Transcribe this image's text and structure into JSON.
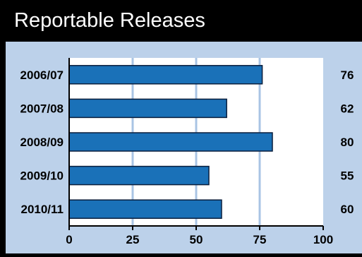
{
  "title": "Reportable Releases",
  "colors": {
    "bar": "#1a71b8",
    "bar_border": "#0a1e3c",
    "background": "#bcd1ea",
    "plot_background": "#ffffff",
    "gridline": "#a9c4e4",
    "title_bar": "#000000"
  },
  "chart_data": {
    "type": "bar",
    "orientation": "horizontal",
    "title": "Reportable Releases",
    "categories": [
      "2006/07",
      "2007/08",
      "2008/09",
      "2009/10",
      "2010/11"
    ],
    "values": [
      76,
      62,
      80,
      55,
      60
    ],
    "value_labels": [
      "76",
      "62",
      "80",
      "55",
      "60"
    ],
    "xlim": [
      0,
      100
    ],
    "ticks": [
      0,
      25,
      50,
      75,
      100
    ],
    "tick_labels": [
      "0",
      "25",
      "50",
      "75",
      "100"
    ],
    "grid": true,
    "legend": "none"
  }
}
